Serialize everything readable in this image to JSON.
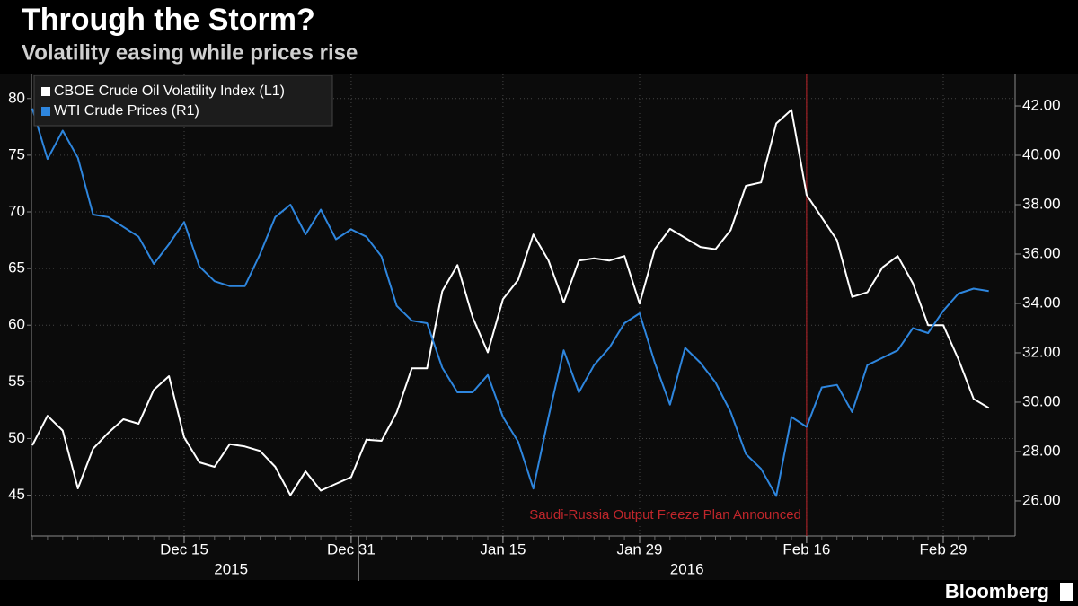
{
  "chart_data": {
    "type": "line",
    "title": "Through the Storm?",
    "subtitle": "Volatility easing while prices rise",
    "source": "Bloomberg",
    "categories": [
      null,
      null,
      null,
      null,
      null,
      null,
      null,
      null,
      null,
      null,
      "Dec 15",
      null,
      null,
      null,
      null,
      null,
      null,
      null,
      null,
      null,
      null,
      "Dec 31",
      null,
      null,
      null,
      null,
      null,
      null,
      null,
      null,
      null,
      "Jan 15",
      null,
      null,
      null,
      null,
      null,
      null,
      null,
      null,
      "Jan 29",
      null,
      null,
      null,
      null,
      null,
      null,
      null,
      null,
      null,
      null,
      "Feb 16",
      null,
      null,
      null,
      null,
      null,
      null,
      null,
      null,
      "Feb 29",
      null,
      null,
      null
    ],
    "year_labels": [
      "2015",
      "2016"
    ],
    "series": [
      {
        "name": "CBOE Crude Oil Volatility Index (L1)",
        "color": "#ffffff",
        "axis": "y",
        "values": [
          49.4,
          52.0,
          50.7,
          45.6,
          49.1,
          50.5,
          51.7,
          51.3,
          54.3,
          55.5,
          50.1,
          47.9,
          47.5,
          49.5,
          49.3,
          48.9,
          47.5,
          45.0,
          47.1,
          45.4,
          46.0,
          46.6,
          49.9,
          49.8,
          52.3,
          56.2,
          56.2,
          63.0,
          65.3,
          60.7,
          57.6,
          62.3,
          64.0,
          68.0,
          65.7,
          62.0,
          65.7,
          65.9,
          65.7,
          66.1,
          61.9,
          66.7,
          68.5,
          67.7,
          66.9,
          66.7,
          68.4,
          72.3,
          72.6,
          77.8,
          79.0,
          71.5,
          69.5,
          67.5,
          62.5,
          62.9,
          65.1,
          66.1,
          63.7,
          60.0,
          60.0,
          57.0,
          53.5,
          52.7
        ]
      },
      {
        "name": "WTI Crude Prices (R1)",
        "color": "#2e86de",
        "axis": "y2",
        "values": [
          41.9,
          39.85,
          41.0,
          39.9,
          37.6,
          37.5,
          37.1,
          36.7,
          35.6,
          36.4,
          37.3,
          35.5,
          34.9,
          34.7,
          34.7,
          36.0,
          37.5,
          38.0,
          36.8,
          37.8,
          36.6,
          37.0,
          36.7,
          35.9,
          33.9,
          33.3,
          33.2,
          31.4,
          30.4,
          30.4,
          31.1,
          29.4,
          28.4,
          26.5,
          29.4,
          32.1,
          30.4,
          31.5,
          32.2,
          33.2,
          33.6,
          31.6,
          29.9,
          32.2,
          31.6,
          30.8,
          29.6,
          27.9,
          27.3,
          26.2,
          29.4,
          29.0,
          30.6,
          30.7,
          29.6,
          31.5,
          31.8,
          32.1,
          33.0,
          32.8,
          33.7,
          34.4,
          34.6,
          34.5
        ]
      }
    ],
    "ylim": [
      41.4,
      82.2
    ],
    "yticks": [
      45,
      50,
      55,
      60,
      65,
      70,
      75,
      80
    ],
    "y2lim": [
      24.58,
      43.31
    ],
    "y2ticks": [
      {
        "value": 26,
        "label": "26.00"
      },
      {
        "value": 28,
        "label": "28.00"
      },
      {
        "value": 30,
        "label": "30.00"
      },
      {
        "value": 32,
        "label": "32.00"
      },
      {
        "value": 34,
        "label": "34.00"
      },
      {
        "value": 36,
        "label": "36.00"
      },
      {
        "value": 38,
        "label": "38.00"
      },
      {
        "value": 40,
        "label": "40.00"
      },
      {
        "value": 42,
        "label": "42.00"
      }
    ],
    "grid": true,
    "legend": "top-left",
    "annotation": {
      "text": "Saudi-Russia Output Freeze Plan Announced",
      "at": "Feb 16",
      "color": "#c0262b"
    }
  }
}
